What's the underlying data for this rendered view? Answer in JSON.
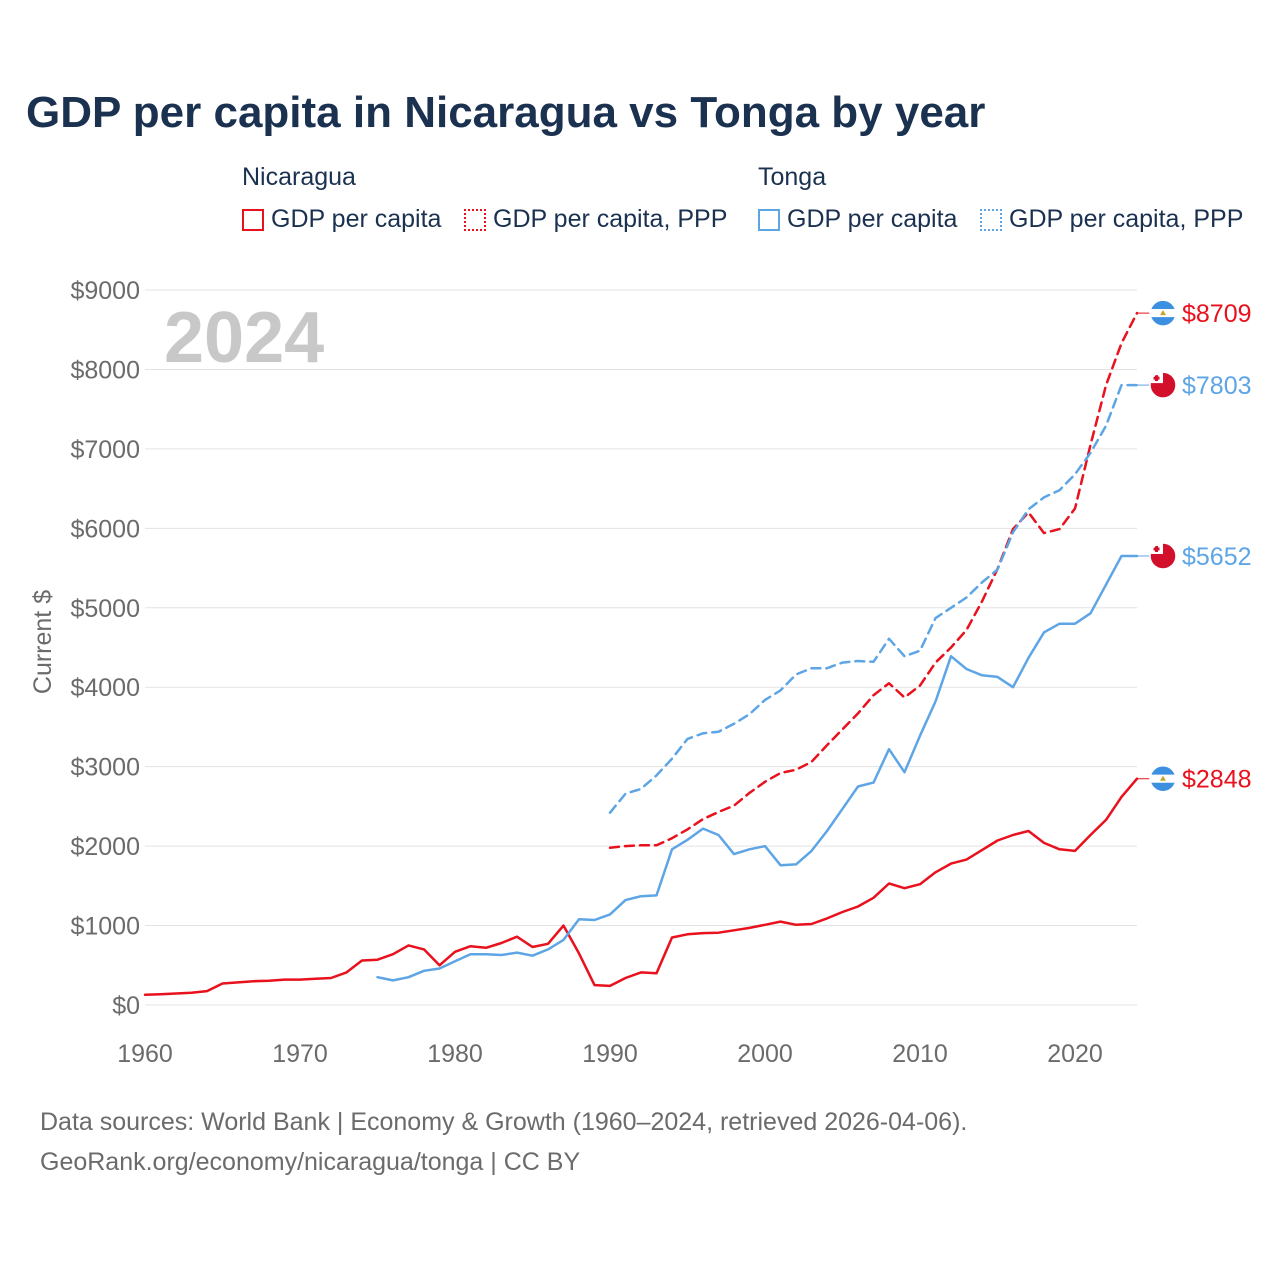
{
  "title": "GDP per capita in Nicaragua vs Tonga by year",
  "legend": {
    "groups": [
      {
        "country": "Nicaragua",
        "items": [
          {
            "label": "GDP per capita",
            "style": "solid",
            "color": "#e8111d"
          },
          {
            "label": "GDP per capita, PPP",
            "style": "dotted",
            "color": "#e8111d"
          }
        ]
      },
      {
        "country": "Tonga",
        "items": [
          {
            "label": "GDP per capita",
            "style": "solid",
            "color": "#5ea5e6"
          },
          {
            "label": "GDP per capita, PPP",
            "style": "dotted",
            "color": "#5ea5e6"
          }
        ]
      }
    ]
  },
  "year_watermark": "2024",
  "footer": {
    "line1": "Data sources: World Bank | Economy & Growth (1960–2024, retrieved 2026-04-06).",
    "line2": "GeoRank.org/economy/nicaragua/tonga | CC BY"
  },
  "colors": {
    "nicaragua": "#e8111d",
    "tonga": "#5ea5e6",
    "title": "#1b3150"
  },
  "chart_data": {
    "type": "line",
    "title": "GDP per capita in Nicaragua vs Tonga by year",
    "xlabel": "",
    "ylabel": "Current $",
    "xlim": [
      1960,
      2024
    ],
    "ylim": [
      0,
      9000
    ],
    "x_ticks": [
      1960,
      1970,
      1980,
      1990,
      2000,
      2010,
      2020
    ],
    "y_ticks": [
      0,
      1000,
      2000,
      3000,
      4000,
      5000,
      6000,
      7000,
      8000,
      9000
    ],
    "y_tick_labels": [
      "$0",
      "$1000",
      "$2000",
      "$3000",
      "$4000",
      "$5000",
      "$6000",
      "$7000",
      "$8000",
      "$9000"
    ],
    "grid": true,
    "series": [
      {
        "name": "Nicaragua GDP per capita",
        "country": "Nicaragua",
        "color": "#e8111d",
        "dash": "solid",
        "end_label": "$2848",
        "flag": "nicaragua-flag-icon",
        "x": [
          1960,
          1961,
          1962,
          1963,
          1964,
          1965,
          1966,
          1967,
          1968,
          1969,
          1970,
          1971,
          1972,
          1973,
          1974,
          1975,
          1976,
          1977,
          1978,
          1979,
          1980,
          1981,
          1982,
          1983,
          1984,
          1985,
          1986,
          1987,
          1988,
          1989,
          1990,
          1991,
          1992,
          1993,
          1994,
          1995,
          1996,
          1997,
          1998,
          1999,
          2000,
          2001,
          2002,
          2003,
          2004,
          2005,
          2006,
          2007,
          2008,
          2009,
          2010,
          2011,
          2012,
          2013,
          2014,
          2015,
          2016,
          2017,
          2018,
          2019,
          2020,
          2021,
          2022,
          2023,
          2024
        ],
        "values": [
          128,
          135,
          145,
          155,
          175,
          270,
          285,
          300,
          305,
          320,
          320,
          330,
          340,
          410,
          560,
          570,
          640,
          750,
          700,
          500,
          670,
          740,
          720,
          780,
          860,
          730,
          770,
          1000,
          650,
          250,
          240,
          340,
          410,
          400,
          850,
          890,
          905,
          910,
          940,
          970,
          1010,
          1050,
          1010,
          1020,
          1090,
          1170,
          1240,
          1350,
          1530,
          1470,
          1520,
          1670,
          1780,
          1830,
          1950,
          2070,
          2140,
          2190,
          2040,
          1960,
          1940,
          2140,
          2330,
          2620,
          2848
        ]
      },
      {
        "name": "Nicaragua GDP per capita, PPP",
        "country": "Nicaragua",
        "color": "#e8111d",
        "dash": "dashed",
        "end_label": "$8709",
        "flag": "nicaragua-flag-icon",
        "x": [
          1990,
          1991,
          1992,
          1993,
          1994,
          1995,
          1996,
          1997,
          1998,
          1999,
          2000,
          2001,
          2002,
          2003,
          2004,
          2005,
          2006,
          2007,
          2008,
          2009,
          2010,
          2011,
          2012,
          2013,
          2014,
          2015,
          2016,
          2017,
          2018,
          2019,
          2020,
          2021,
          2022,
          2023,
          2024
        ],
        "values": [
          1980,
          2000,
          2010,
          2010,
          2100,
          2210,
          2340,
          2430,
          2510,
          2670,
          2810,
          2920,
          2960,
          3060,
          3270,
          3470,
          3670,
          3900,
          4050,
          3870,
          4020,
          4310,
          4500,
          4720,
          5080,
          5490,
          5990,
          6200,
          5940,
          5990,
          6250,
          7050,
          7800,
          8330,
          8709
        ]
      },
      {
        "name": "Tonga GDP per capita",
        "country": "Tonga",
        "color": "#5ea5e6",
        "dash": "solid",
        "end_label": "$5652",
        "flag": "tonga-flag-icon",
        "x": [
          1975,
          1976,
          1977,
          1978,
          1979,
          1980,
          1981,
          1982,
          1983,
          1984,
          1985,
          1986,
          1987,
          1988,
          1989,
          1990,
          1991,
          1992,
          1993,
          1994,
          1995,
          1996,
          1997,
          1998,
          1999,
          2000,
          2001,
          2002,
          2003,
          2004,
          2005,
          2006,
          2007,
          2008,
          2009,
          2010,
          2011,
          2012,
          2013,
          2014,
          2015,
          2016,
          2017,
          2018,
          2019,
          2020,
          2021,
          2022,
          2023,
          2024
        ],
        "values": [
          350,
          310,
          350,
          430,
          460,
          550,
          640,
          640,
          630,
          660,
          620,
          700,
          820,
          1080,
          1070,
          1140,
          1320,
          1370,
          1380,
          1960,
          2080,
          2220,
          2140,
          1900,
          1960,
          2000,
          1760,
          1770,
          1940,
          2190,
          2470,
          2750,
          2800,
          3220,
          2930,
          3390,
          3820,
          4390,
          4230,
          4150,
          4130,
          4000,
          4370,
          4690,
          4800,
          4800,
          4930,
          5290,
          5652,
          5652
        ]
      },
      {
        "name": "Tonga GDP per capita, PPP",
        "country": "Tonga",
        "color": "#5ea5e6",
        "dash": "dashed",
        "end_label": "$7803",
        "flag": "tonga-flag-icon",
        "x": [
          1990,
          1991,
          1992,
          1993,
          1994,
          1995,
          1996,
          1997,
          1998,
          1999,
          2000,
          2001,
          2002,
          2003,
          2004,
          2005,
          2006,
          2007,
          2008,
          2009,
          2010,
          2011,
          2012,
          2013,
          2014,
          2015,
          2016,
          2017,
          2018,
          2019,
          2020,
          2021,
          2022,
          2023,
          2024
        ],
        "values": [
          2420,
          2660,
          2720,
          2890,
          3100,
          3350,
          3420,
          3440,
          3540,
          3660,
          3840,
          3960,
          4160,
          4240,
          4240,
          4310,
          4330,
          4320,
          4610,
          4390,
          4460,
          4870,
          5000,
          5130,
          5320,
          5480,
          5950,
          6240,
          6390,
          6480,
          6680,
          6950,
          7290,
          7803,
          7803
        ]
      }
    ]
  }
}
